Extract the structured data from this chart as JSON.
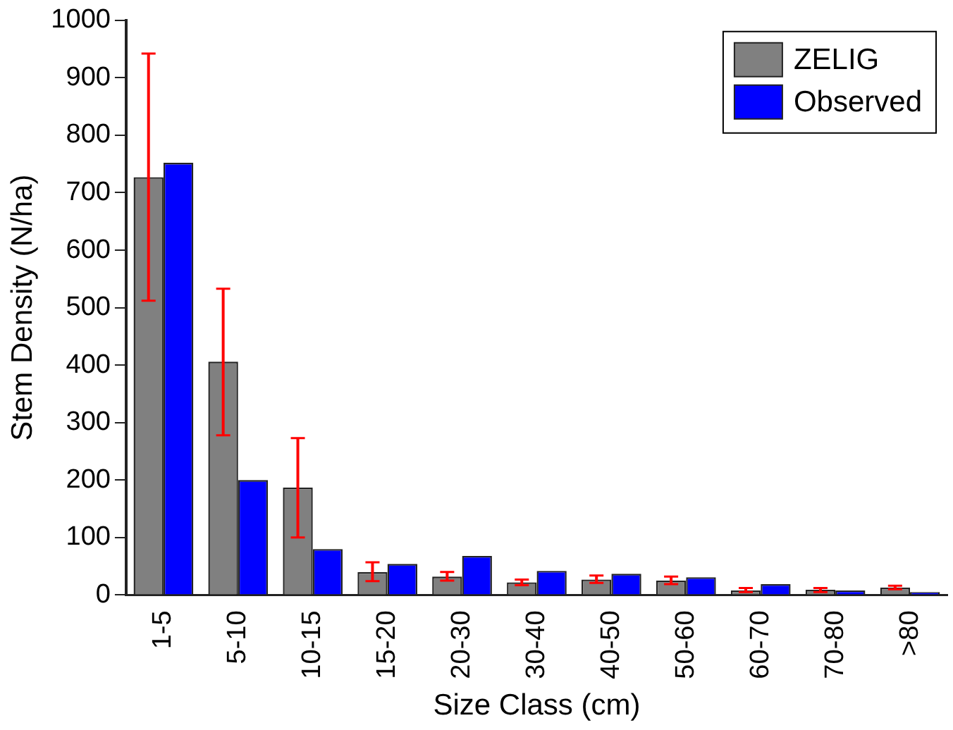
{
  "chart_data": {
    "type": "bar",
    "xlabel": "Size Class (cm)",
    "ylabel": "Stem Density (N/ha)",
    "categories": [
      "1-5",
      "5-10",
      "10-15",
      "15-20",
      "20-30",
      "30-40",
      "40-50",
      "50-60",
      "60-70",
      "70-80",
      ">80"
    ],
    "series": [
      {
        "name": "ZELIG",
        "color": "#808080",
        "values": [
          727,
          406,
          187,
          40,
          32,
          22,
          27,
          25,
          8,
          9,
          13
        ],
        "errors": [
          [
            512,
            942
          ],
          [
            278,
            533
          ],
          [
            100,
            273
          ],
          [
            24,
            57
          ],
          [
            25,
            40
          ],
          [
            17,
            27
          ],
          [
            21,
            34
          ],
          [
            19,
            32
          ],
          [
            5,
            12
          ],
          [
            5,
            12
          ],
          [
            10,
            16
          ]
        ]
      },
      {
        "name": "Observed",
        "color": "#0000ff",
        "values": [
          752,
          200,
          80,
          54,
          68,
          42,
          37,
          31,
          19,
          8,
          5
        ]
      }
    ],
    "ylim": [
      0,
      1000
    ],
    "yticks": [
      0,
      100,
      200,
      300,
      400,
      500,
      600,
      700,
      800,
      900,
      1000
    ],
    "grid": false,
    "legend": "top right"
  }
}
